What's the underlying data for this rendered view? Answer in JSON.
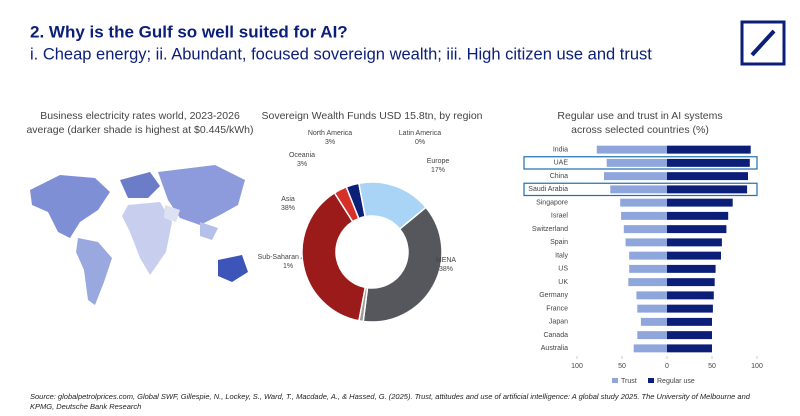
{
  "header": {
    "title": "2. Why is the Gulf so well suited for AI?",
    "subtitle": "i. Cheap energy; ii. Abundant, focused sovereign wealth; iii. High citizen use and trust"
  },
  "map": {
    "title_lines": [
      "Business electricity rates world, 2023-2026",
      "average (darker shade is highest at $0.445/kWh)"
    ]
  },
  "chart_data": [
    {
      "type": "pie",
      "title": "Sovereign Wealth Funds USD 15.8tn, by region",
      "categories": [
        "North America",
        "Latin America",
        "Europe",
        "MENA",
        "Sub-Saharan Africa",
        "Asia",
        "Oceania"
      ],
      "values": [
        3,
        0,
        17,
        38,
        1,
        38,
        3
      ],
      "value_labels": [
        "3%",
        "0%",
        "17%",
        "38%",
        "1%",
        "38%",
        "3%"
      ],
      "colors": [
        "#0b1e78",
        "#c9d6f0",
        "#a9d4f5",
        "#55575d",
        "#9a9a9a",
        "#9b1a1a",
        "#d6302a"
      ]
    },
    {
      "type": "diverging-bar",
      "title_lines": [
        "Regular use and trust in AI systems",
        "across selected countries (%)"
      ],
      "categories": [
        "India",
        "UAE",
        "China",
        "Saudi Arabia",
        "Singapore",
        "Israel",
        "Switzerland",
        "Spain",
        "Italy",
        "US",
        "UK",
        "Germany",
        "France",
        "Japan",
        "Canada",
        "Australia"
      ],
      "series": [
        {
          "name": "Trust",
          "color": "#8fa6dc",
          "values": [
            78,
            67,
            70,
            63,
            52,
            51,
            48,
            46,
            42,
            42,
            43,
            34,
            33,
            29,
            33,
            37
          ]
        },
        {
          "name": "Regular use",
          "color": "#0b1e78",
          "values": [
            93,
            92,
            90,
            89,
            73,
            68,
            66,
            61,
            60,
            54,
            53,
            52,
            51,
            50,
            50,
            50
          ]
        }
      ],
      "xlim": [
        -100,
        100
      ],
      "xticks": [
        {
          "value": -100,
          "label": "100"
        },
        {
          "value": -50,
          "label": "50"
        },
        0,
        50,
        100
      ],
      "highlight": [
        1,
        3
      ],
      "grid": false
    }
  ],
  "source": "Source: globalpetrolprices.com, Global SWF, Gillespie, N., Lockey, S., Ward, T., Macdade, A., & Hassed, G. (2025). Trust, attitudes and use of artificial intelligence: A global study 2025. The University of Melbourne and KPMG, Deutsche Bank Research"
}
